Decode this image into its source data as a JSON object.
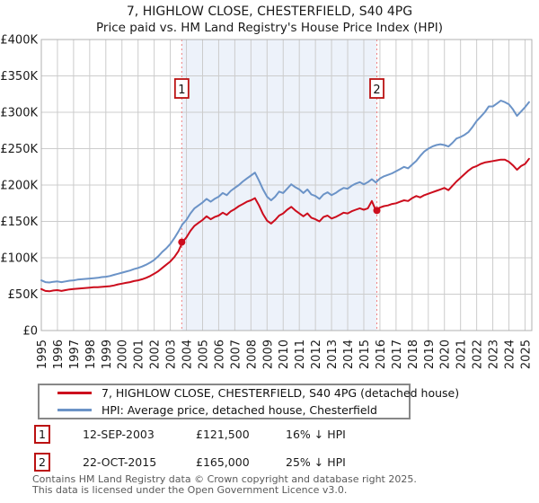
{
  "title": {
    "line1": "7, HIGHLOW CLOSE, CHESTERFIELD, S40 4PG",
    "line2": "Price paid vs. HM Land Registry's House Price Index (HPI)"
  },
  "colors": {
    "grid": "#cccccc",
    "frame": "#b0b0b0",
    "band": "#edf2fa",
    "dashed": "#f08080",
    "red": "#cc0d1d",
    "blue": "#6b93c7",
    "box_border": "#bb1111",
    "tick_text": "#1a1a1a",
    "footer_text": "#5a5a5a"
  },
  "chart_data": {
    "type": "line",
    "xlim": [
      1995,
      2025.42
    ],
    "ylim": [
      0,
      400000
    ],
    "grid": true,
    "legend_position": "bottom",
    "x_ticks": [
      1995,
      1996,
      1997,
      1998,
      1999,
      2000,
      2001,
      2002,
      2003,
      2004,
      2005,
      2006,
      2007,
      2008,
      2009,
      2010,
      2011,
      2012,
      2013,
      2014,
      2015,
      2016,
      2017,
      2018,
      2019,
      2020,
      2021,
      2022,
      2023,
      2024,
      2025
    ],
    "y_ticks": [
      {
        "value": 0,
        "label": "£0"
      },
      {
        "value": 50000,
        "label": "£50K"
      },
      {
        "value": 100000,
        "label": "£100K"
      },
      {
        "value": 150000,
        "label": "£150K"
      },
      {
        "value": 200000,
        "label": "£200K"
      },
      {
        "value": 250000,
        "label": "£250K"
      },
      {
        "value": 300000,
        "label": "£300K"
      },
      {
        "value": 350000,
        "label": "£350K"
      },
      {
        "value": 400000,
        "label": "£400K"
      }
    ],
    "shaded_region": {
      "from": 2003.71,
      "to": 2015.81,
      "fill": "#edf2fa"
    },
    "sales": [
      {
        "label": "1",
        "x": 2003.71,
        "price": 121500,
        "date": "12-SEP-2003"
      },
      {
        "label": "2",
        "x": 2015.81,
        "price": 165000,
        "date": "22-OCT-2015"
      }
    ],
    "dashed_line_color": "#f08080",
    "marker_color": "#cc0d1d",
    "series": [
      {
        "id": "price",
        "name": "7, HIGHLOW CLOSE, CHESTERFIELD, S40 4PG (detached house)",
        "color": "#cc0d1d",
        "x0": 1995,
        "dx": 0.25,
        "values": [
          57000,
          54500,
          54000,
          55000,
          55500,
          54500,
          55500,
          56500,
          57000,
          57500,
          58000,
          58500,
          59000,
          59500,
          59500,
          60000,
          60500,
          61000,
          62000,
          63500,
          64500,
          65500,
          66500,
          68000,
          69000,
          70500,
          72500,
          75000,
          78000,
          81500,
          86000,
          90500,
          95000,
          101000,
          109000,
          121500,
          128000,
          137000,
          144000,
          148000,
          152000,
          157000,
          153000,
          156000,
          158000,
          162000,
          159000,
          164000,
          167000,
          171000,
          174000,
          177000,
          179000,
          182000,
          172000,
          160000,
          151000,
          147000,
          152000,
          158000,
          161000,
          166000,
          170000,
          165000,
          161000,
          157000,
          161000,
          155000,
          153000,
          150000,
          156000,
          158000,
          154000,
          156000,
          159000,
          162000,
          161000,
          164000,
          166000,
          168000,
          166000,
          168000,
          178000,
          165000,
          169000,
          171000,
          172000,
          174000,
          175000,
          177000,
          179000,
          178000,
          182000,
          185000,
          183000,
          186000,
          188000,
          190000,
          192000,
          194000,
          196000,
          193000,
          199000,
          205000,
          210000,
          215000,
          220000,
          224000,
          226000,
          229000,
          231000,
          232000,
          233000,
          234000,
          235000,
          235000,
          232000,
          227000,
          221000,
          226000,
          229000,
          236000
        ]
      },
      {
        "id": "hpi",
        "name": "HPI: Average price, detached house, Chesterfield",
        "color": "#6b93c7",
        "x0": 1995,
        "dx": 0.25,
        "values": [
          69000,
          66500,
          66000,
          67000,
          67500,
          66500,
          67500,
          68500,
          69000,
          70000,
          70500,
          71000,
          71500,
          72000,
          72500,
          73500,
          74000,
          75000,
          76500,
          78000,
          79500,
          81000,
          82500,
          84500,
          86000,
          88000,
          90500,
          93500,
          97000,
          102000,
          108000,
          113000,
          119000,
          127000,
          136000,
          146000,
          152000,
          161000,
          168000,
          172000,
          176000,
          181000,
          177000,
          181000,
          184000,
          189000,
          186000,
          192000,
          196000,
          200000,
          205000,
          209000,
          213000,
          217000,
          206000,
          194000,
          184000,
          179000,
          184000,
          191000,
          189000,
          195000,
          201000,
          197000,
          194000,
          189000,
          194000,
          187000,
          185000,
          181000,
          187000,
          190000,
          186000,
          189000,
          193000,
          196000,
          195000,
          199000,
          202000,
          204000,
          201000,
          204000,
          208000,
          203500,
          209000,
          212000,
          214000,
          216000,
          219000,
          222000,
          225000,
          223000,
          228000,
          233000,
          240000,
          246000,
          250000,
          253000,
          255000,
          256000,
          255000,
          253000,
          258000,
          264000,
          266000,
          269000,
          273000,
          280000,
          288000,
          294000,
          300000,
          308000,
          308000,
          312000,
          316000,
          314000,
          311000,
          304000,
          295000,
          301000,
          307000,
          314000
        ]
      }
    ]
  },
  "legend": {
    "items": [
      {
        "label": "7, HIGHLOW CLOSE, CHESTERFIELD, S40 4PG (detached house)",
        "color": "#cc0d1d"
      },
      {
        "label": "HPI: Average price, detached house, Chesterfield",
        "color": "#6b93c7"
      }
    ]
  },
  "annotations": [
    {
      "num": "1",
      "date": "12-SEP-2003",
      "price": "£121,500",
      "vs_hpi": "16% ↓ HPI"
    },
    {
      "num": "2",
      "date": "22-OCT-2015",
      "price": "£165,000",
      "vs_hpi": "25% ↓ HPI"
    }
  ],
  "footer": {
    "line1": "Contains HM Land Registry data © Crown copyright and database right 2025.",
    "line2": "This data is licensed under the Open Government Licence v3.0."
  }
}
